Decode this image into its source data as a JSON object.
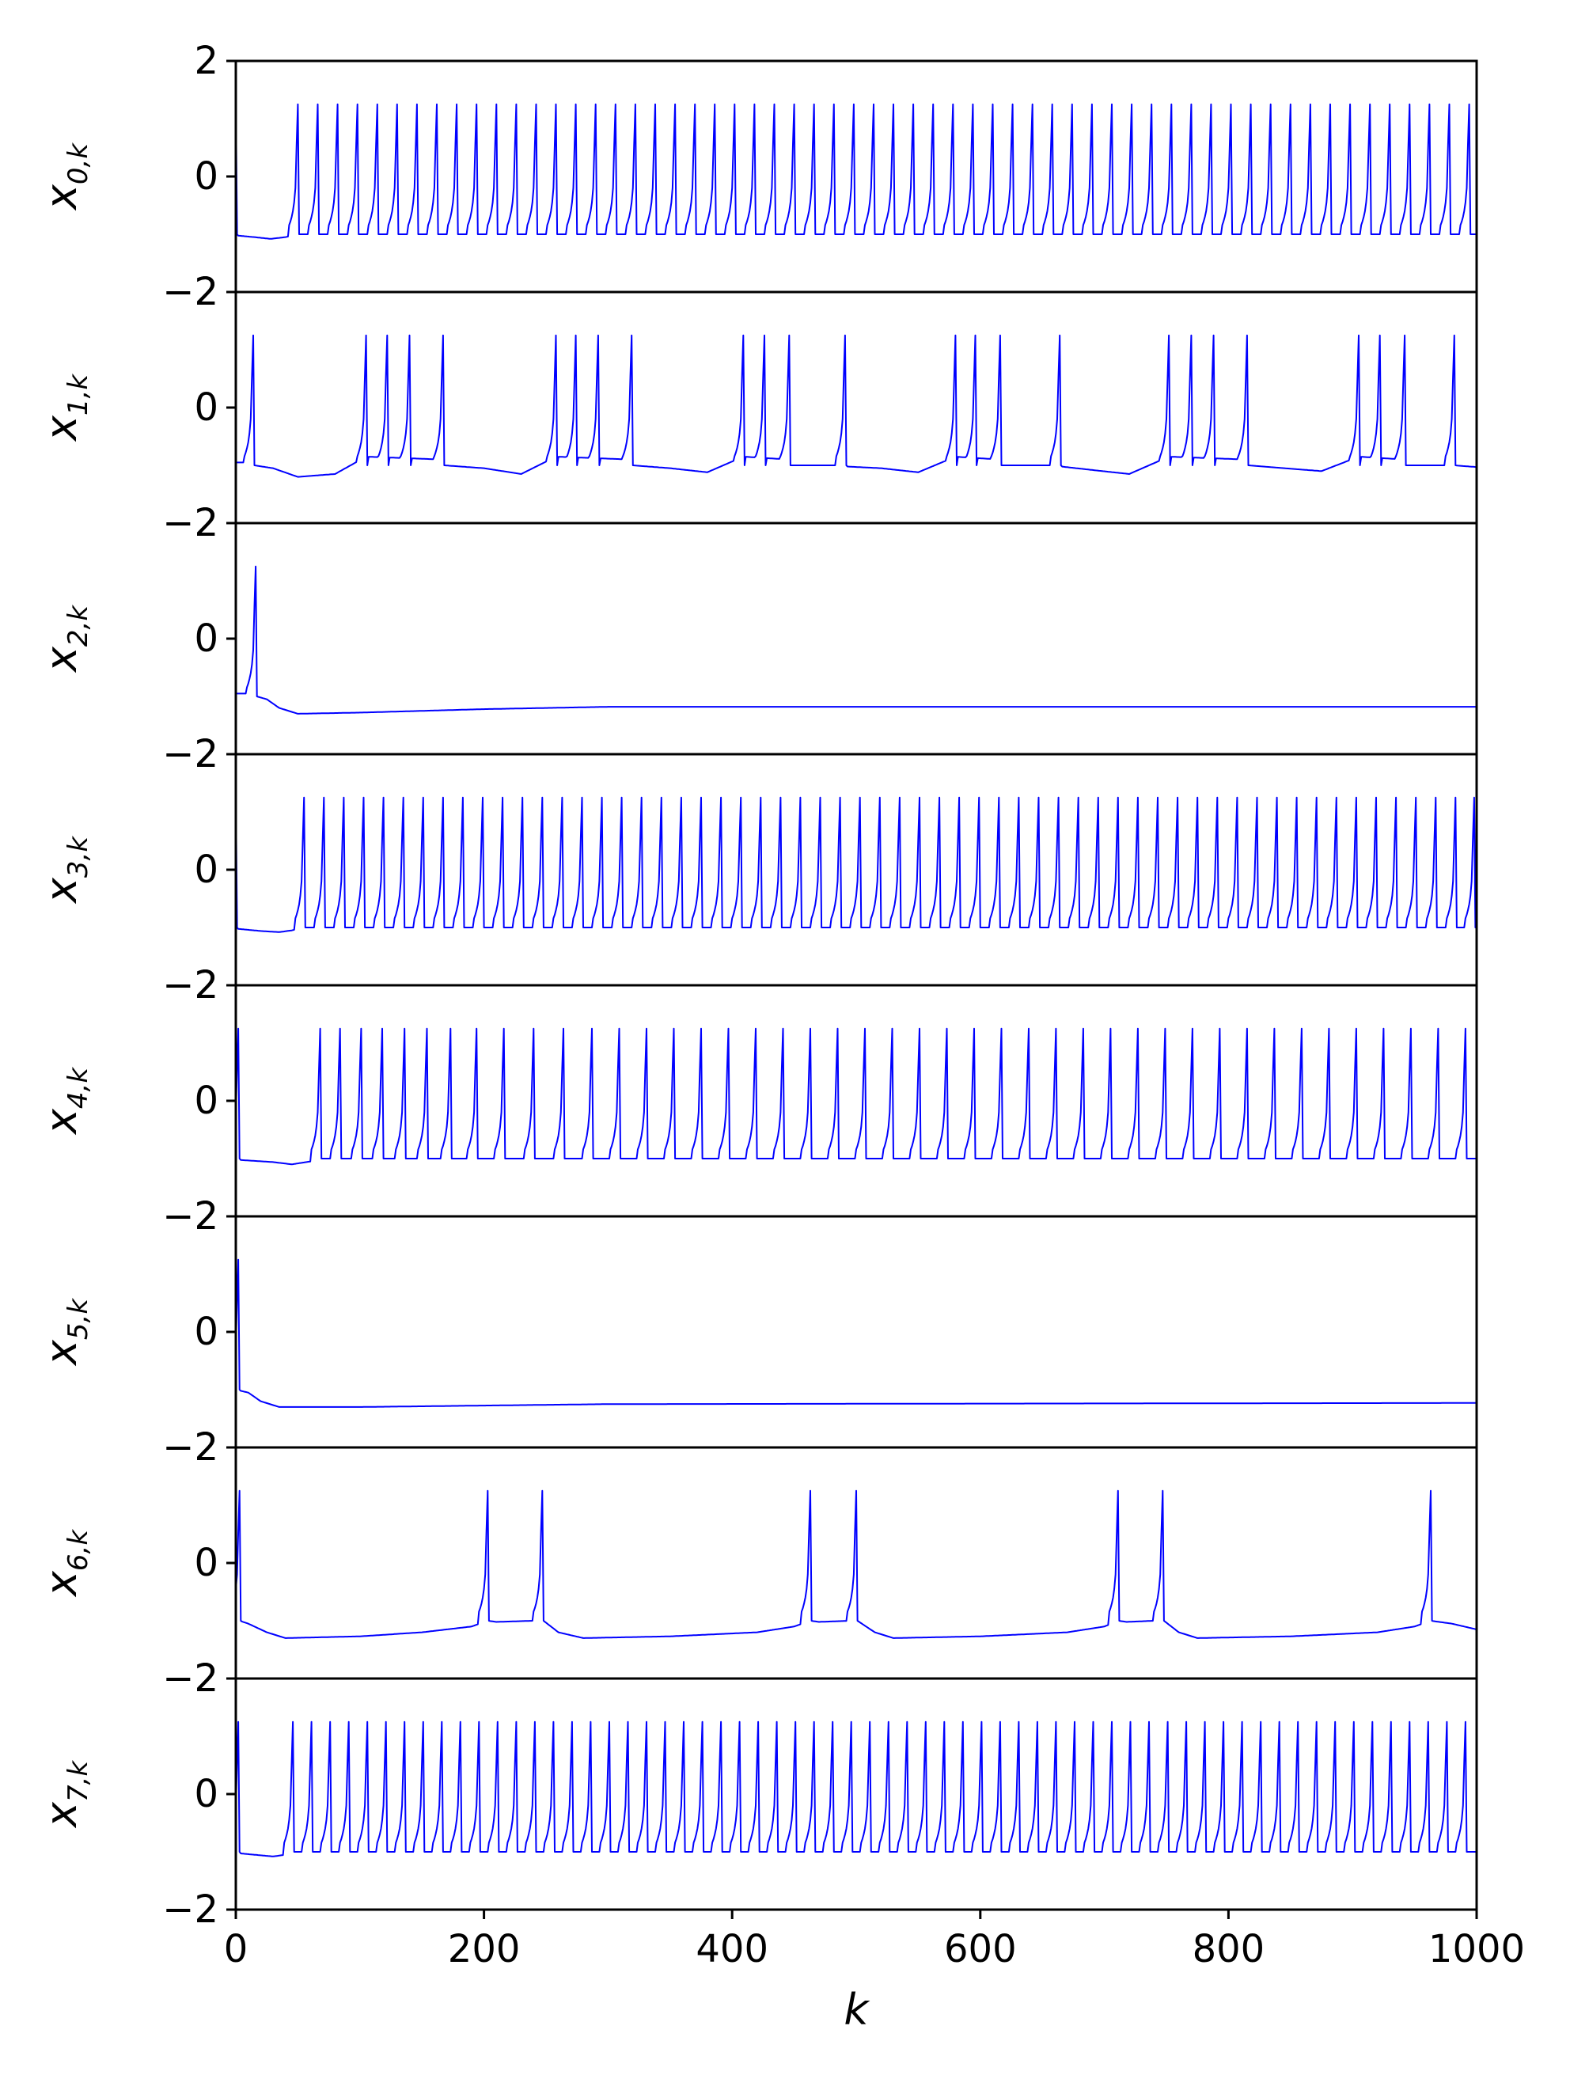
{
  "chart_data": {
    "type": "line",
    "line_color": "#0000ff",
    "x": {
      "label": "k",
      "lim": [
        0,
        1000
      ],
      "ticks": [
        0,
        200,
        400,
        600,
        800,
        1000
      ],
      "tick_labels": [
        "0",
        "200",
        "400",
        "600",
        "800",
        "1000"
      ]
    },
    "y": {
      "lim": [
        -2,
        2
      ],
      "ticks": [
        -2,
        0,
        2
      ],
      "tick_labels": [
        "−2",
        "0",
        "2"
      ]
    },
    "grid": false,
    "legend": "none",
    "sample_step": 1,
    "spike_profile": {
      "peak": 1.25,
      "reset": -1.0,
      "rise": [
        0.55,
        -0.2,
        -0.45,
        -0.6,
        -0.7,
        -0.78,
        -0.84
      ]
    },
    "series": [
      {
        "ylabel": "x",
        "ylabel_sub": "0,k",
        "spikes": [
          0,
          50,
          66,
          82,
          98,
          114,
          130,
          146,
          162,
          178,
          194,
          210,
          226,
          242,
          258,
          274,
          290,
          306,
          322,
          338,
          354,
          370,
          386,
          402,
          418,
          434,
          450,
          466,
          482,
          498,
          514,
          530,
          546,
          562,
          578,
          594,
          610,
          626,
          642,
          658,
          674,
          690,
          706,
          722,
          738,
          754,
          770,
          786,
          802,
          818,
          834,
          850,
          866,
          882,
          898,
          914,
          930,
          946,
          962,
          978,
          994
        ],
        "baseline": [
          [
            0,
            -1.02
          ],
          [
            15,
            -1.05
          ],
          [
            28,
            -1.08
          ],
          [
            40,
            -1.05
          ],
          [
            50,
            -1.0
          ],
          [
            1000,
            -1.0
          ]
        ]
      },
      {
        "ylabel": "x",
        "ylabel_sub": "1,k",
        "spikes": [
          14,
          105,
          122,
          140,
          167,
          258,
          274,
          292,
          319,
          409,
          426,
          446,
          491,
          580,
          596,
          616,
          664,
          752,
          770,
          788,
          815,
          905,
          922,
          942,
          982
        ],
        "baseline": [
          [
            0,
            -0.95
          ],
          [
            14,
            -0.95
          ],
          [
            15,
            -1.0
          ],
          [
            30,
            -1.05
          ],
          [
            50,
            -1.2
          ],
          [
            80,
            -1.15
          ],
          [
            105,
            -0.85
          ],
          [
            167,
            -0.9
          ],
          [
            168,
            -1.0
          ],
          [
            200,
            -1.05
          ],
          [
            230,
            -1.15
          ],
          [
            258,
            -0.85
          ],
          [
            319,
            -0.9
          ],
          [
            320,
            -1.0
          ],
          [
            350,
            -1.05
          ],
          [
            380,
            -1.12
          ],
          [
            409,
            -0.85
          ],
          [
            446,
            -0.9
          ],
          [
            447,
            -1.0
          ],
          [
            491,
            -1.0
          ],
          [
            492,
            -1.02
          ],
          [
            520,
            -1.05
          ],
          [
            550,
            -1.12
          ],
          [
            580,
            -0.85
          ],
          [
            616,
            -0.9
          ],
          [
            617,
            -1.0
          ],
          [
            664,
            -1.0
          ],
          [
            665,
            -1.02
          ],
          [
            690,
            -1.08
          ],
          [
            720,
            -1.15
          ],
          [
            752,
            -0.85
          ],
          [
            815,
            -0.9
          ],
          [
            816,
            -1.0
          ],
          [
            845,
            -1.05
          ],
          [
            875,
            -1.1
          ],
          [
            905,
            -0.85
          ],
          [
            942,
            -0.9
          ],
          [
            943,
            -1.0
          ],
          [
            982,
            -1.0
          ],
          [
            1000,
            -1.03
          ]
        ]
      },
      {
        "ylabel": "x",
        "ylabel_sub": "2,k",
        "spikes": [
          16
        ],
        "baseline": [
          [
            0,
            -0.95
          ],
          [
            16,
            -0.95
          ],
          [
            17,
            -1.0
          ],
          [
            25,
            -1.05
          ],
          [
            35,
            -1.2
          ],
          [
            50,
            -1.3
          ],
          [
            100,
            -1.28
          ],
          [
            200,
            -1.22
          ],
          [
            300,
            -1.18
          ],
          [
            1000,
            -1.18
          ]
        ]
      },
      {
        "ylabel": "x",
        "ylabel_sub": "3,k",
        "spikes": [
          0,
          55,
          71,
          87,
          103,
          119,
          135,
          151,
          167,
          183,
          199,
          215,
          231,
          247,
          263,
          279,
          295,
          311,
          327,
          343,
          359,
          375,
          391,
          407,
          423,
          439,
          455,
          471,
          487,
          503,
          519,
          535,
          551,
          567,
          583,
          599,
          615,
          631,
          647,
          663,
          679,
          695,
          711,
          727,
          743,
          759,
          775,
          791,
          807,
          823,
          839,
          855,
          871,
          887,
          903,
          919,
          935,
          951,
          967,
          983,
          998
        ],
        "baseline": [
          [
            0,
            -1.02
          ],
          [
            20,
            -1.06
          ],
          [
            35,
            -1.08
          ],
          [
            45,
            -1.05
          ],
          [
            55,
            -1.0
          ],
          [
            1000,
            -1.0
          ]
        ]
      },
      {
        "ylabel": "x",
        "ylabel_sub": "4,k",
        "spikes": [
          2,
          68,
          84,
          101,
          118,
          136,
          154,
          173,
          194,
          216,
          240,
          264,
          287,
          309,
          331,
          353,
          375,
          397,
          419,
          441,
          463,
          485,
          507,
          529,
          551,
          573,
          595,
          617,
          639,
          661,
          683,
          705,
          727,
          749,
          771,
          793,
          815,
          837,
          859,
          881,
          903,
          925,
          947,
          969,
          991
        ],
        "baseline": [
          [
            0,
            -1.02
          ],
          [
            30,
            -1.06
          ],
          [
            45,
            -1.1
          ],
          [
            60,
            -1.05
          ],
          [
            68,
            -1.0
          ],
          [
            1000,
            -1.0
          ]
        ]
      },
      {
        "ylabel": "x",
        "ylabel_sub": "5,k",
        "spikes": [
          2
        ],
        "baseline": [
          [
            0,
            -1.0
          ],
          [
            10,
            -1.05
          ],
          [
            20,
            -1.2
          ],
          [
            35,
            -1.3
          ],
          [
            100,
            -1.3
          ],
          [
            300,
            -1.25
          ],
          [
            1000,
            -1.23
          ]
        ]
      },
      {
        "ylabel": "x",
        "ylabel_sub": "6,k",
        "spikes": [
          3,
          203,
          247,
          463,
          500,
          711,
          747,
          963
        ],
        "baseline": [
          [
            0,
            -1.0
          ],
          [
            3,
            -1.0
          ],
          [
            10,
            -1.05
          ],
          [
            25,
            -1.2
          ],
          [
            40,
            -1.3
          ],
          [
            100,
            -1.27
          ],
          [
            150,
            -1.2
          ],
          [
            190,
            -1.1
          ],
          [
            203,
            -1.0
          ],
          [
            210,
            -1.02
          ],
          [
            240,
            -1.0
          ],
          [
            248,
            -1.0
          ],
          [
            260,
            -1.2
          ],
          [
            280,
            -1.3
          ],
          [
            350,
            -1.27
          ],
          [
            420,
            -1.2
          ],
          [
            450,
            -1.1
          ],
          [
            463,
            -1.0
          ],
          [
            470,
            -1.02
          ],
          [
            495,
            -1.0
          ],
          [
            501,
            -1.0
          ],
          [
            515,
            -1.2
          ],
          [
            530,
            -1.3
          ],
          [
            600,
            -1.27
          ],
          [
            670,
            -1.2
          ],
          [
            700,
            -1.1
          ],
          [
            711,
            -1.0
          ],
          [
            718,
            -1.02
          ],
          [
            740,
            -1.0
          ],
          [
            748,
            -1.0
          ],
          [
            760,
            -1.2
          ],
          [
            775,
            -1.3
          ],
          [
            850,
            -1.27
          ],
          [
            920,
            -1.2
          ],
          [
            950,
            -1.1
          ],
          [
            963,
            -1.0
          ],
          [
            980,
            -1.05
          ],
          [
            1000,
            -1.15
          ]
        ]
      },
      {
        "ylabel": "x",
        "ylabel_sub": "7,k",
        "spikes": [
          2,
          46,
          61,
          76,
          91,
          106,
          121,
          136,
          151,
          166,
          181,
          196,
          211,
          226,
          241,
          256,
          271,
          286,
          301,
          316,
          331,
          346,
          361,
          376,
          391,
          406,
          421,
          436,
          451,
          466,
          481,
          496,
          511,
          526,
          541,
          556,
          571,
          586,
          601,
          616,
          631,
          646,
          661,
          676,
          691,
          706,
          721,
          736,
          751,
          766,
          781,
          796,
          811,
          826,
          841,
          856,
          871,
          886,
          901,
          916,
          931,
          946,
          961,
          976,
          991
        ],
        "baseline": [
          [
            0,
            -1.02
          ],
          [
            15,
            -1.05
          ],
          [
            30,
            -1.08
          ],
          [
            40,
            -1.05
          ],
          [
            46,
            -1.0
          ],
          [
            1000,
            -1.0
          ]
        ]
      }
    ]
  }
}
